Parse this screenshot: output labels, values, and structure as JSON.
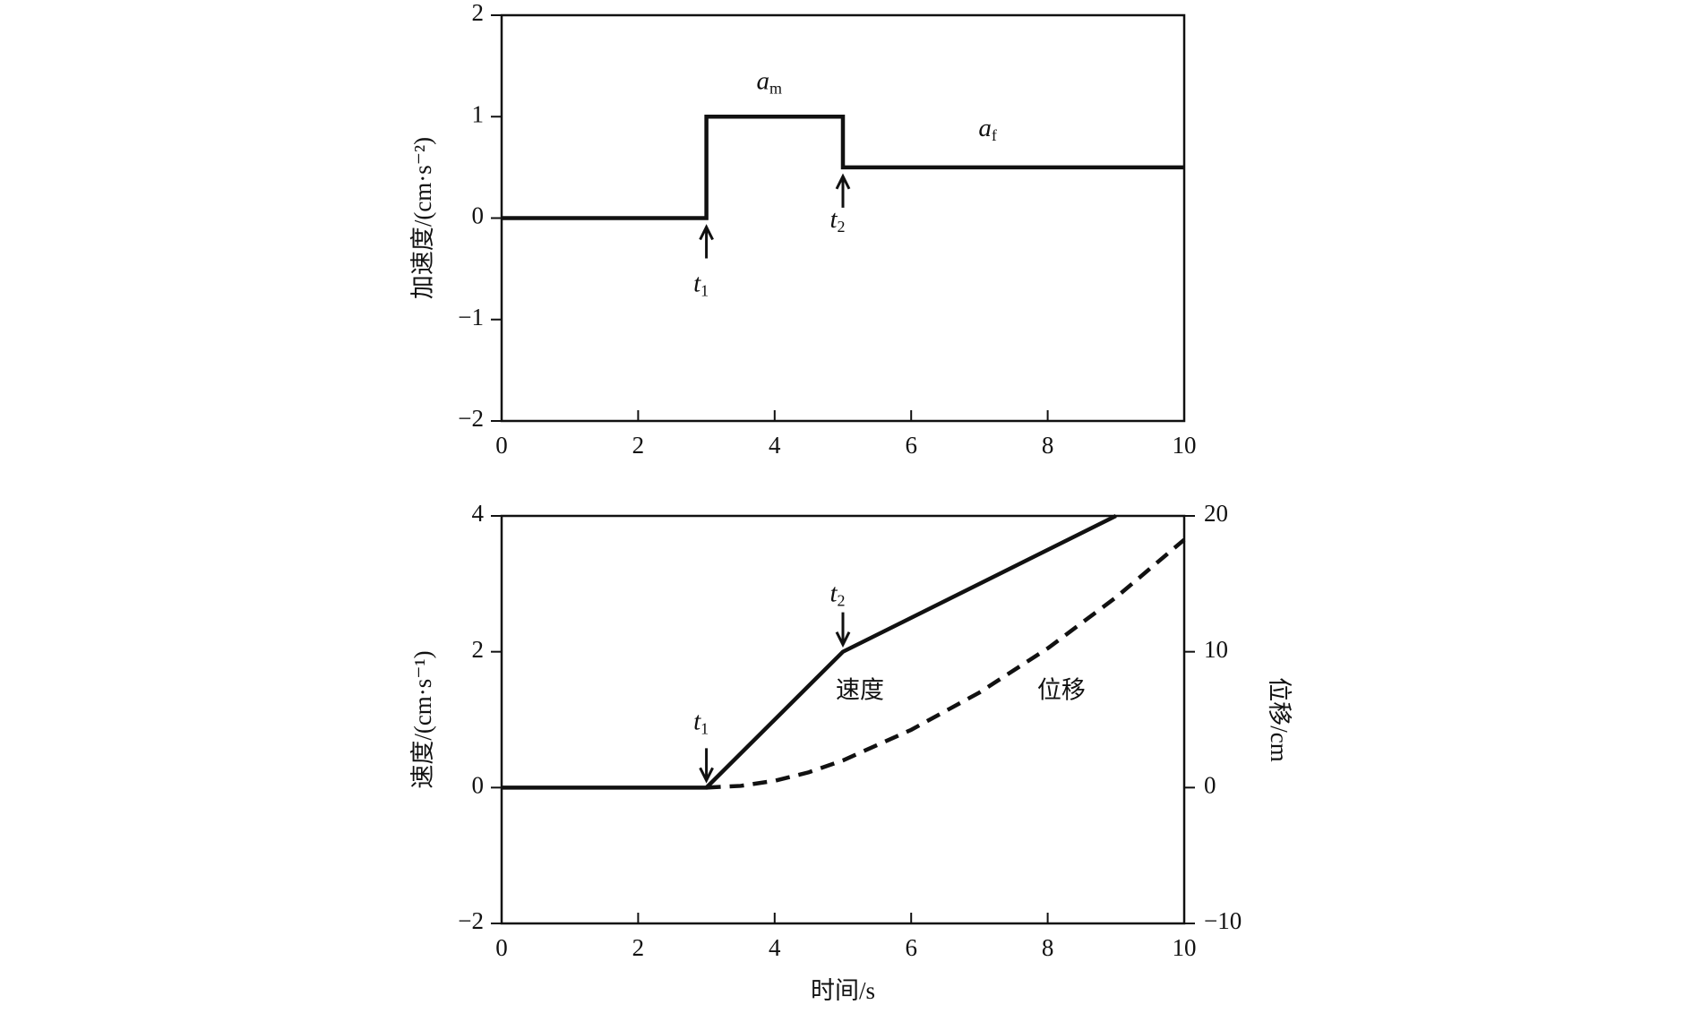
{
  "chart_data": [
    {
      "type": "line",
      "y_label": "加速度/(cm·s⁻²)",
      "xlim": [
        0,
        10
      ],
      "xticks": [
        0,
        2,
        4,
        6,
        8,
        10
      ],
      "ylim": [
        -2,
        2
      ],
      "yticks": [
        {
          "value": -2,
          "label": "−2"
        },
        {
          "value": -1,
          "label": "−1"
        },
        0,
        1,
        2
      ],
      "series": [
        {
          "color": "#111111",
          "style": "solid",
          "x": [
            0,
            3,
            3,
            5,
            5,
            10
          ],
          "values": [
            0,
            0,
            1,
            1,
            0.5,
            0.5
          ]
        }
      ],
      "annotations": [
        {
          "text": "a",
          "sub": "m"
        },
        {
          "text": "a",
          "sub": "f"
        },
        {
          "text": "t",
          "sub": "1"
        },
        {
          "text": "t",
          "sub": "2"
        }
      ]
    },
    {
      "type": "line",
      "x_label": "时间/s",
      "y_label": "速度/(cm·s⁻¹)",
      "y2_label": "位移/cm",
      "xlim": [
        0,
        10
      ],
      "xticks": [
        0,
        2,
        4,
        6,
        8,
        10
      ],
      "ylim": [
        -2,
        4
      ],
      "yticks": [
        {
          "value": -2,
          "label": "−2"
        },
        0,
        2,
        4
      ],
      "y2lim": [
        -10,
        20
      ],
      "y2ticks": [
        {
          "value": -10,
          "label": "−10"
        },
        0,
        10,
        20
      ],
      "series": [
        {
          "name": "速度",
          "color": "#111111",
          "style": "solid",
          "x": [
            0,
            3,
            5,
            9
          ],
          "values": [
            0,
            0,
            2,
            4
          ]
        },
        {
          "name": "位移",
          "color": "#111111",
          "style": "dashed",
          "axis": "y2",
          "x": [
            3,
            3.5,
            4,
            4.5,
            5,
            6,
            7,
            8,
            9,
            10
          ],
          "values": [
            0,
            0.125,
            0.5,
            1.125,
            2,
            4.25,
            7,
            10.25,
            14,
            18.25
          ]
        }
      ],
      "annotations": [
        {
          "text": "t",
          "sub": "1"
        },
        {
          "text": "t",
          "sub": "2"
        }
      ]
    }
  ]
}
